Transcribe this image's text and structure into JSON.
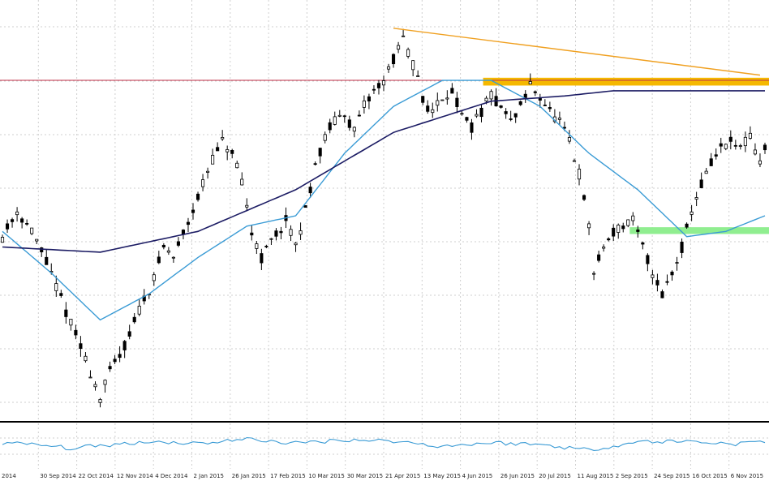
{
  "chart_data": {
    "type": "candlestick",
    "title": "",
    "xlabel": "",
    "ylabel": "",
    "grid": true,
    "x_tick_labels": [
      "2014",
      "30 Sep 2014",
      "22 Oct 2014",
      "12 Nov 2014",
      "4 Dec 2014",
      "2 Jan 2015",
      "26 Jan 2015",
      "17 Feb 2015",
      "10 Mar 2015",
      "30 Mar 2015",
      "21 Apr 2015",
      "13 May 2015",
      "4 Jun 2015",
      "26 Jun 2015",
      "20 Jul 2015",
      "11 Aug 2015",
      "2 Sep 2015",
      "24 Sep 2015",
      "16 Oct 2015",
      "6 Nov 2015"
    ],
    "price_path": [
      [
        0,
        62
      ],
      [
        3,
        67
      ],
      [
        6,
        63
      ],
      [
        9,
        57
      ],
      [
        12,
        50
      ],
      [
        15,
        43
      ],
      [
        18,
        36
      ],
      [
        20,
        31
      ],
      [
        22,
        36
      ],
      [
        25,
        41
      ],
      [
        28,
        48
      ],
      [
        31,
        54
      ],
      [
        33,
        60
      ],
      [
        35,
        58
      ],
      [
        38,
        65
      ],
      [
        41,
        72
      ],
      [
        43,
        77
      ],
      [
        45,
        80
      ],
      [
        47,
        78
      ],
      [
        49,
        72
      ],
      [
        51,
        63
      ],
      [
        53,
        58
      ],
      [
        55,
        61
      ],
      [
        58,
        65
      ],
      [
        60,
        60
      ],
      [
        62,
        67
      ],
      [
        64,
        76
      ],
      [
        67,
        83
      ],
      [
        70,
        86
      ],
      [
        72,
        82
      ],
      [
        74,
        87
      ],
      [
        76,
        90
      ],
      [
        78,
        92
      ],
      [
        80,
        96
      ],
      [
        82,
        100
      ],
      [
        83,
        97
      ],
      [
        85,
        93
      ],
      [
        86,
        88
      ],
      [
        88,
        86
      ],
      [
        90,
        89
      ],
      [
        92,
        90
      ],
      [
        94,
        85
      ],
      [
        96,
        83
      ],
      [
        98,
        86
      ],
      [
        100,
        89
      ],
      [
        102,
        87
      ],
      [
        104,
        84
      ],
      [
        106,
        87
      ],
      [
        108,
        91
      ],
      [
        110,
        89
      ],
      [
        112,
        86
      ],
      [
        114,
        84
      ],
      [
        116,
        80
      ],
      [
        118,
        74
      ],
      [
        120,
        64
      ],
      [
        121,
        55
      ],
      [
        123,
        60
      ],
      [
        125,
        63
      ],
      [
        127,
        64
      ],
      [
        129,
        65
      ],
      [
        131,
        60
      ],
      [
        133,
        55
      ],
      [
        135,
        51
      ],
      [
        137,
        55
      ],
      [
        139,
        60
      ],
      [
        141,
        67
      ],
      [
        143,
        72
      ],
      [
        145,
        76
      ],
      [
        147,
        79
      ],
      [
        149,
        80
      ],
      [
        151,
        79
      ],
      [
        153,
        81
      ],
      [
        155,
        76
      ],
      [
        156,
        79
      ]
    ],
    "ma_fast_path": [
      [
        0,
        63
      ],
      [
        10,
        55
      ],
      [
        20,
        46
      ],
      [
        30,
        51
      ],
      [
        40,
        58
      ],
      [
        50,
        64
      ],
      [
        60,
        66
      ],
      [
        70,
        78
      ],
      [
        80,
        87
      ],
      [
        90,
        92
      ],
      [
        100,
        92
      ],
      [
        110,
        87
      ],
      [
        120,
        78
      ],
      [
        130,
        71
      ],
      [
        140,
        62
      ],
      [
        148,
        63
      ],
      [
        156,
        66
      ]
    ],
    "ma_slow_path": [
      [
        0,
        60
      ],
      [
        20,
        59
      ],
      [
        40,
        63
      ],
      [
        60,
        71
      ],
      [
        80,
        82
      ],
      [
        100,
        88
      ],
      [
        115,
        89
      ],
      [
        125,
        90
      ],
      [
        140,
        90
      ],
      [
        156,
        90
      ]
    ],
    "oscillator_path": [
      [
        0,
        52
      ],
      [
        8,
        44
      ],
      [
        14,
        33
      ],
      [
        22,
        45
      ],
      [
        30,
        56
      ],
      [
        40,
        50
      ],
      [
        50,
        64
      ],
      [
        60,
        50
      ],
      [
        70,
        62
      ],
      [
        80,
        58
      ],
      [
        90,
        40
      ],
      [
        100,
        52
      ],
      [
        110,
        46
      ],
      [
        120,
        28
      ],
      [
        130,
        55
      ],
      [
        140,
        57
      ],
      [
        150,
        48
      ],
      [
        156,
        57
      ]
    ],
    "annotations": [
      {
        "type": "horizontal_line",
        "color": "#c0304a",
        "y": 92
      },
      {
        "type": "trendline",
        "color": "#f0a020",
        "from": [
          80,
          102
        ],
        "to": [
          155,
          93
        ]
      },
      {
        "type": "resistance_zone",
        "color": "#f5b800",
        "y_range": [
          91,
          92.5
        ],
        "x_start": 100
      },
      {
        "type": "support_zone",
        "color": "#90ee90",
        "y_range": [
          62.5,
          63.8
        ],
        "x_start": 130
      }
    ],
    "colors": {
      "candles": "#000000",
      "ma_fast": "#3a9bd5",
      "ma_slow": "#1c1c64",
      "oscillator": "#3a9bd5",
      "grid": "#cfcfcf",
      "separator": "#000000"
    }
  }
}
